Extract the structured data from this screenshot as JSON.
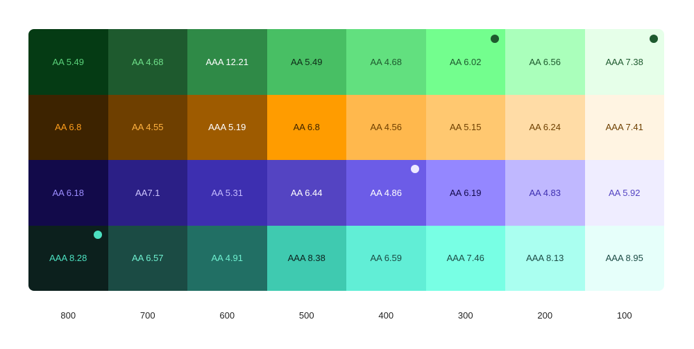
{
  "columns": [
    "800",
    "700",
    "600",
    "500",
    "400",
    "300",
    "200",
    "100"
  ],
  "rows": [
    {
      "cells": [
        {
          "label": "AA 5.49",
          "bg": "#053b14",
          "fg": "#5ad07a"
        },
        {
          "label": "AA 4.68",
          "bg": "#1e5a2e",
          "fg": "#6fe08a"
        },
        {
          "label": "AAA 12.21",
          "bg": "#2f8a47",
          "fg": "#ffffff"
        },
        {
          "label": "AA 5.49",
          "bg": "#48bf64",
          "fg": "#0d2a16"
        },
        {
          "label": "AA 4.68",
          "bg": "#62e07f",
          "fg": "#1e5a2e"
        },
        {
          "label": "AA 6.02",
          "bg": "#73fe8e",
          "fg": "#1e5a2e"
        },
        {
          "label": "AA 6.56",
          "bg": "#aaffbb",
          "fg": "#1e5a2e"
        },
        {
          "label": "AAA 7.38",
          "bg": "#e6ffe9",
          "fg": "#1e5a2e"
        }
      ]
    },
    {
      "cells": [
        {
          "label": "AA 6.8",
          "bg": "#3d2300",
          "fg": "#ff9f1c"
        },
        {
          "label": "AA 4.55",
          "bg": "#6e3f00",
          "fg": "#ffb240"
        },
        {
          "label": "AAA 5.19",
          "bg": "#9e5b00",
          "fg": "#ffffff"
        },
        {
          "label": "AA 6.8",
          "bg": "#ff9c00",
          "fg": "#3d2300"
        },
        {
          "label": "AA 4.56",
          "bg": "#ffb84d",
          "fg": "#6e3f00"
        },
        {
          "label": "AA 5.15",
          "bg": "#ffc870",
          "fg": "#6e3f00"
        },
        {
          "label": "AA 6.24",
          "bg": "#ffdca6",
          "fg": "#6e3f00"
        },
        {
          "label": "AAA 7.41",
          "bg": "#fff4e2",
          "fg": "#6e3f00"
        }
      ]
    },
    {
      "cells": [
        {
          "label": "AA 6.18",
          "bg": "#120a4a",
          "fg": "#9c8dff"
        },
        {
          "label": "AA7.1",
          "bg": "#2b1f86",
          "fg": "#cfc7ff"
        },
        {
          "label": "AA 5.31",
          "bg": "#3d2fb0",
          "fg": "#c4bbff"
        },
        {
          "label": "AA 6.44",
          "bg": "#5444c2",
          "fg": "#ffffff"
        },
        {
          "label": "AA 4.86",
          "bg": "#6c5ce7",
          "fg": "#ffffff"
        },
        {
          "label": "AA 6.19",
          "bg": "#9487ff",
          "fg": "#120a4a"
        },
        {
          "label": "AA 4.83",
          "bg": "#c0b8ff",
          "fg": "#3d2fb0"
        },
        {
          "label": "AA 5.92",
          "bg": "#efedff",
          "fg": "#5444c2"
        }
      ]
    },
    {
      "cells": [
        {
          "label": "AAA 8.28",
          "bg": "#0c201d",
          "fg": "#4ce0c0"
        },
        {
          "label": "AA 6.57",
          "bg": "#1b4b44",
          "fg": "#6ff0d0"
        },
        {
          "label": "AA 4.91",
          "bg": "#216f64",
          "fg": "#6ff0d0"
        },
        {
          "label": "AAA 8.38",
          "bg": "#3fcab0",
          "fg": "#0c201d"
        },
        {
          "label": "AA 6.59",
          "bg": "#61eed6",
          "fg": "#1b4b44"
        },
        {
          "label": "AAA 7.46",
          "bg": "#78ffe4",
          "fg": "#1b4b44"
        },
        {
          "label": "AAA 8.13",
          "bg": "#aafff0",
          "fg": "#1b4b44"
        },
        {
          "label": "AAA 8.95",
          "bg": "#e6fffa",
          "fg": "#1b4b44"
        }
      ]
    }
  ]
}
